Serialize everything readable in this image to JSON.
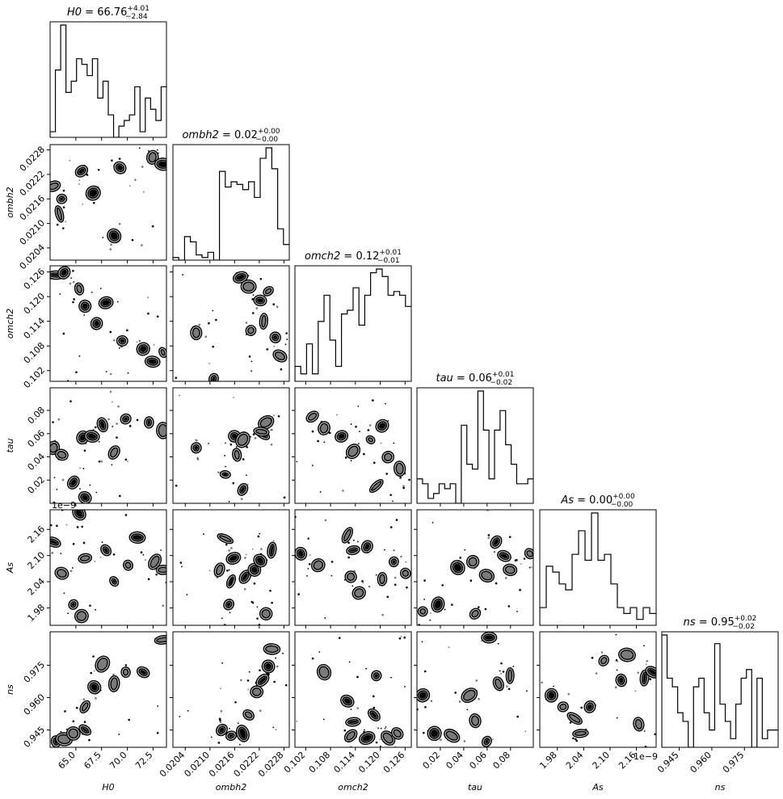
{
  "chart_data": {
    "type": "corner",
    "parameters": [
      "H0",
      "ombh2",
      "omch2",
      "tau",
      "As",
      "ns"
    ],
    "titles": {
      "H0": {
        "name": "H0",
        "value": "66.76",
        "plus": "+4.01",
        "minus": "−2.84"
      },
      "ombh2": {
        "name": "ombh2",
        "value": "0.02",
        "plus": "+0.00",
        "minus": "−0.00"
      },
      "omch2": {
        "name": "omch2",
        "value": "0.12",
        "plus": "+0.01",
        "minus": "−0.01"
      },
      "tau": {
        "name": "tau",
        "value": "0.06",
        "plus": "+0.01",
        "minus": "−0.02"
      },
      "As": {
        "name": "As",
        "value": "0.00",
        "plus": "+0.00",
        "minus": "−0.00"
      },
      "ns": {
        "name": "ns",
        "value": "0.95",
        "plus": "+0.02",
        "minus": "−0.02"
      }
    },
    "axis_labels": [
      "H0",
      "ombh2",
      "omch2",
      "tau",
      "As",
      "ns"
    ],
    "ranges": {
      "H0": [
        62.5,
        73.8
      ],
      "ombh2": [
        0.0201,
        0.02293
      ],
      "omch2": [
        0.0994,
        0.1275
      ],
      "tau": [
        0.0,
        0.0995
      ],
      "As": [
        1.94e-09,
        2.205e-09
      ],
      "ns": [
        0.937,
        0.9905
      ]
    },
    "ticks": {
      "H0": {
        "values": [
          65.0,
          67.5,
          70.0,
          72.5
        ],
        "labels": [
          "65.0",
          "67.5",
          "70.0",
          "72.5"
        ]
      },
      "ombh2": {
        "values": [
          0.0204,
          0.021,
          0.0216,
          0.0222,
          0.0228
        ],
        "labels": [
          "0.0204",
          "0.0210",
          "0.0216",
          "0.0222",
          "0.0228"
        ]
      },
      "omch2": {
        "values": [
          0.102,
          0.108,
          0.114,
          0.12,
          0.126
        ],
        "labels": [
          "0.102",
          "0.108",
          "0.114",
          "0.120",
          "0.126"
        ]
      },
      "tau": {
        "values": [
          0.02,
          0.04,
          0.06,
          0.08
        ],
        "labels": [
          "0.02",
          "0.04",
          "0.06",
          "0.08"
        ]
      },
      "As": {
        "values": [
          1.98e-09,
          2.04e-09,
          2.1e-09,
          2.16e-09
        ],
        "labels": [
          "1.98",
          "2.04",
          "2.10",
          "2.16"
        ]
      },
      "ns": {
        "values": [
          0.945,
          0.96,
          0.975
        ],
        "labels": [
          "0.945",
          "0.960",
          "0.975"
        ]
      }
    },
    "offset_text": "1e−9",
    "histograms": {
      "H0": [
        1,
        12,
        20,
        8,
        10,
        14,
        13,
        11,
        14,
        7,
        10,
        4,
        0,
        2,
        3,
        4,
        9,
        1,
        7,
        5,
        3,
        9
      ],
      "ombh2": [
        1,
        0,
        9,
        7,
        2,
        1,
        3,
        0,
        34,
        28,
        30,
        29,
        27,
        30,
        24,
        39,
        43,
        35,
        12,
        6
      ],
      "omch2": [
        4,
        2,
        10,
        2,
        16,
        23,
        11,
        4,
        18,
        19,
        25,
        15,
        23,
        29,
        30,
        28,
        23,
        24,
        23,
        20
      ],
      "tau": [
        5,
        4,
        1,
        2,
        4,
        3,
        4,
        0,
        16,
        8,
        7,
        23,
        15,
        5,
        15,
        19,
        12,
        8,
        4,
        4,
        5
      ],
      "As": [
        3,
        10,
        9,
        7,
        6,
        12,
        16,
        11,
        19,
        11,
        12,
        7,
        3,
        2,
        3,
        1,
        3,
        2
      ],
      "ns": [
        13,
        8,
        7,
        4,
        3,
        0,
        7,
        8,
        4,
        2,
        12,
        5,
        3,
        1,
        5,
        8,
        9,
        0,
        8,
        1,
        2,
        2
      ]
    }
  }
}
